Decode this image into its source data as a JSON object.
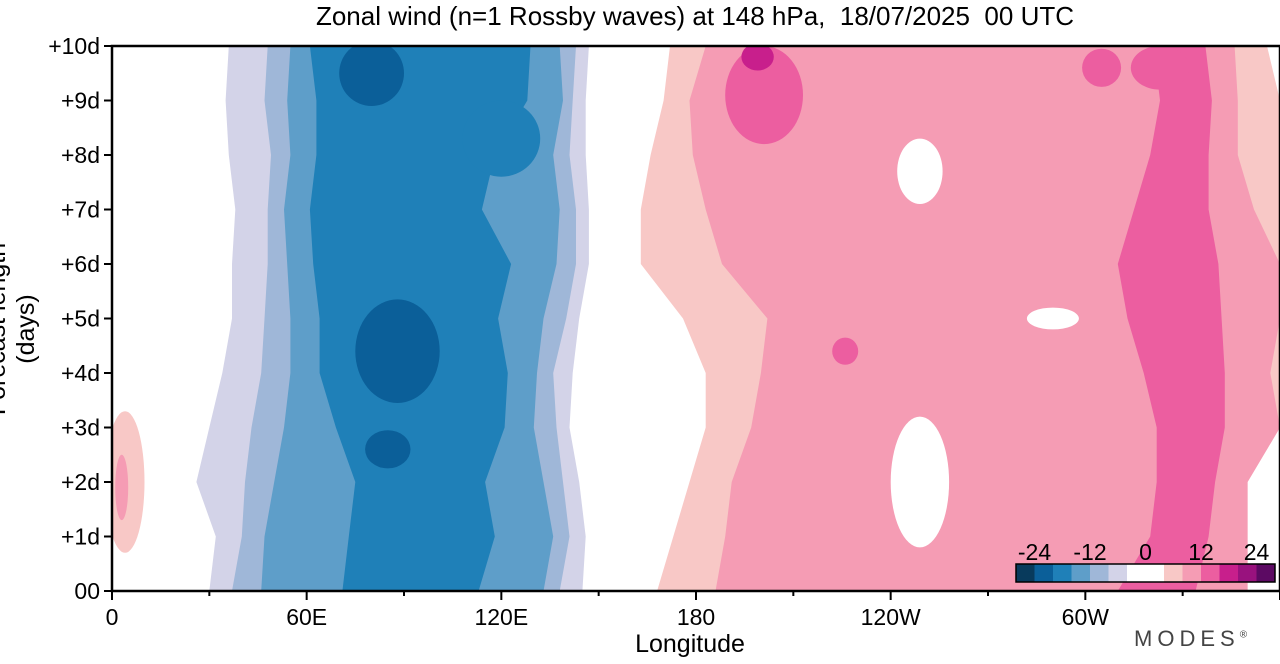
{
  "brand": "MODES",
  "chart_data": {
    "type": "heatmap",
    "title": "Zonal wind (n=1 Rossby waves) at 148 hPa,  18/07/2025  00 UTC",
    "xlabel": "Longitude",
    "ylabel": "Forecast length (days)",
    "x_ticks": [
      "0",
      "60E",
      "120E",
      "180",
      "120W",
      "60W"
    ],
    "y_ticks": [
      "00",
      "+1d",
      "+2d",
      "+3d",
      "+4d",
      "+5d",
      "+6d",
      "+7d",
      "+8d",
      "+9d",
      "+10d"
    ],
    "xlim": [
      0,
      360
    ],
    "ylim": [
      0,
      10
    ],
    "colorbar": {
      "tick_labels": [
        "-24",
        "-12",
        "0",
        "12",
        "24"
      ],
      "levels": [
        -24,
        -20,
        -16,
        -12,
        -8,
        -4,
        0,
        4,
        8,
        12,
        16,
        20,
        24
      ],
      "colors": [
        "#083a5c",
        "#0b5f99",
        "#1f80b8",
        "#5e9ec9",
        "#9fb7d8",
        "#d3d3e8",
        "#ffffff",
        "#ffffff",
        "#f8c8c6",
        "#f59cb4",
        "#ec5ea0",
        "#c81f8c",
        "#99127e",
        "#5c0a63"
      ]
    },
    "y_days": [
      0,
      1,
      2,
      3,
      4,
      5,
      6,
      7,
      8,
      9,
      10
    ],
    "bands": [
      {
        "color": "#d3d3e8",
        "left": [
          30,
          32,
          26,
          30,
          34,
          37,
          37,
          38,
          36,
          35,
          36
        ],
        "right": [
          145,
          146,
          144,
          141,
          142,
          144,
          147,
          147,
          146,
          146,
          147
        ]
      },
      {
        "color": "#9fb7d8",
        "left": [
          37,
          40,
          41,
          43,
          46,
          47,
          48,
          48,
          49,
          47,
          48
        ],
        "right": [
          138,
          141,
          139,
          137,
          136,
          140,
          143,
          143,
          141,
          142,
          143
        ]
      },
      {
        "color": "#5e9ec9",
        "left": [
          46,
          47,
          50,
          53,
          55,
          55,
          54,
          53,
          55,
          54,
          55
        ],
        "right": [
          133,
          136,
          133,
          130,
          131,
          133,
          137,
          138,
          136,
          139,
          138
        ]
      },
      {
        "color": "#1f80b8",
        "left": [
          71,
          73,
          75,
          69,
          64,
          64,
          62,
          61,
          63,
          63,
          61
        ],
        "right": [
          113,
          118,
          115,
          121,
          122,
          119,
          123,
          114,
          118,
          128,
          129
        ]
      },
      {
        "color": "#f8c8c6",
        "left": [
          168,
          173,
          178,
          183,
          183,
          176,
          163,
          163,
          166,
          170,
          172
        ],
        "right": [
          350,
          350,
          350,
          360,
          360,
          360,
          360,
          360,
          360,
          360,
          356
        ]
      },
      {
        "color": "#f59cb4",
        "left": [
          186,
          189,
          191,
          197,
          200,
          202,
          188,
          183,
          179,
          178,
          183
        ],
        "right": [
          350,
          350,
          350,
          360,
          357,
          360,
          360,
          352,
          347,
          347,
          346
        ]
      },
      {
        "color": "#ec5ea0",
        "left": [
          310,
          320,
          322,
          322,
          318,
          313,
          310,
          315,
          320,
          323,
          321
        ],
        "right": [
          334,
          338,
          340,
          343,
          343,
          342,
          341,
          338,
          338,
          339,
          337
        ]
      }
    ],
    "blobs": [
      {
        "color": "#0b5f99",
        "center": [
          88,
          4.4
        ],
        "rx": 13,
        "ry": 0.95
      },
      {
        "color": "#0b5f99",
        "center": [
          85,
          2.6
        ],
        "rx": 7,
        "ry": 0.35
      },
      {
        "color": "#0b5f99",
        "center": [
          80,
          9.5
        ],
        "rx": 10,
        "ry": 0.6
      },
      {
        "color": "#1f80b8",
        "center": [
          120,
          8.3
        ],
        "rx": 12,
        "ry": 0.7
      },
      {
        "color": "#f8c8c6",
        "center": [
          4,
          2.0
        ],
        "rx": 6,
        "ry": 1.3
      },
      {
        "color": "#f59cb4",
        "center": [
          3,
          1.9
        ],
        "rx": 2,
        "ry": 0.6
      },
      {
        "color": "#ffffff",
        "center": [
          249,
          7.7
        ],
        "rx": 7,
        "ry": 0.6
      },
      {
        "color": "#ffffff",
        "center": [
          249,
          2.0
        ],
        "rx": 9,
        "ry": 1.2
      },
      {
        "color": "#ffffff",
        "center": [
          290,
          5.0
        ],
        "rx": 8,
        "ry": 0.2
      },
      {
        "color": "#f59cb4",
        "center": [
          233,
          4.9
        ],
        "rx": 14,
        "ry": 1.0
      },
      {
        "color": "#f59cb4",
        "center": [
          217,
          9.3
        ],
        "rx": 20,
        "ry": 0.8
      },
      {
        "color": "#ec5ea0",
        "center": [
          226,
          4.4
        ],
        "rx": 4,
        "ry": 0.25
      },
      {
        "color": "#ec5ea0",
        "center": [
          201,
          9.1
        ],
        "rx": 12,
        "ry": 0.9
      },
      {
        "color": "#c81f8c",
        "center": [
          199,
          9.8
        ],
        "rx": 5,
        "ry": 0.25
      },
      {
        "color": "#ec5ea0",
        "center": [
          305,
          9.6
        ],
        "rx": 6,
        "ry": 0.35
      },
      {
        "color": "#ec5ea0",
        "center": [
          323,
          9.6
        ],
        "rx": 9,
        "ry": 0.4
      },
      {
        "color": "#f59cb4",
        "center": [
          292,
          1.2
        ],
        "rx": 12,
        "ry": 0.8
      },
      {
        "color": "#f59cb4",
        "center": [
          239,
          7.1
        ],
        "rx": 4,
        "ry": 0.2
      },
      {
        "color": "#f59cb4",
        "center": [
          268,
          6.5
        ],
        "rx": 3,
        "ry": 0.15
      }
    ]
  }
}
